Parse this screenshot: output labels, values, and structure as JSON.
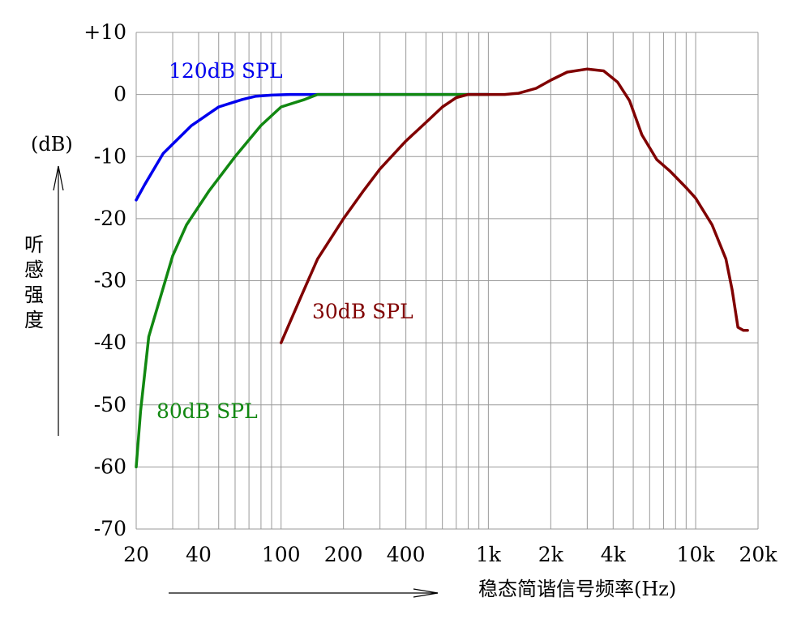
{
  "chart_data": {
    "type": "line",
    "title": "",
    "xlabel": "稳态简谐信号频率(Hz)",
    "ylabel": "听感强度",
    "yunit": "(dB)",
    "x_scale": "log",
    "xlim": [
      20,
      20000
    ],
    "ylim": [
      -70,
      10
    ],
    "grid": true,
    "x_grid_values": [
      20,
      30,
      40,
      50,
      60,
      70,
      80,
      90,
      100,
      200,
      300,
      400,
      500,
      600,
      700,
      800,
      900,
      1000,
      2000,
      3000,
      4000,
      5000,
      6000,
      7000,
      8000,
      9000,
      10000,
      20000
    ],
    "x_ticks": [
      {
        "value": 20,
        "label": "20"
      },
      {
        "value": 40,
        "label": "40"
      },
      {
        "value": 100,
        "label": "100"
      },
      {
        "value": 200,
        "label": "200"
      },
      {
        "value": 400,
        "label": "400"
      },
      {
        "value": 1000,
        "label": "1k"
      },
      {
        "value": 2000,
        "label": "2k"
      },
      {
        "value": 4000,
        "label": "4k"
      },
      {
        "value": 10000,
        "label": "10k"
      },
      {
        "value": 20000,
        "label": "20k"
      }
    ],
    "y_ticks": [
      {
        "value": 10,
        "label": "+10"
      },
      {
        "value": 0,
        "label": "0"
      },
      {
        "value": -10,
        "label": "-10"
      },
      {
        "value": -20,
        "label": "-20"
      },
      {
        "value": -30,
        "label": "-30"
      },
      {
        "value": -40,
        "label": "-40"
      },
      {
        "value": -50,
        "label": "-50"
      },
      {
        "value": -60,
        "label": "-60"
      },
      {
        "value": -70,
        "label": "-70"
      }
    ],
    "series": [
      {
        "name": "120dB SPL",
        "label": "120dB SPL",
        "color": "#0000ee",
        "x": [
          20,
          22,
          27,
          37,
          50,
          65,
          75,
          90,
          110,
          150,
          200,
          500,
          1000
        ],
        "y": [
          -17,
          -14.5,
          -9.5,
          -5,
          -2,
          -0.8,
          -0.3,
          -0.1,
          0,
          0,
          0,
          0,
          0
        ]
      },
      {
        "name": "80dB SPL",
        "label": "80dB SPL",
        "color": "#118811",
        "x": [
          20,
          21,
          23,
          26,
          30,
          35,
          45,
          60,
          80,
          100,
          130,
          150,
          200,
          400,
          800,
          1000
        ],
        "y": [
          -60,
          -51,
          -39,
          -33,
          -26,
          -21,
          -15.5,
          -10,
          -5,
          -2,
          -0.8,
          0,
          0,
          0,
          0,
          0
        ]
      },
      {
        "name": "30dB SPL",
        "label": "30dB SPL",
        "color": "#800000",
        "x": [
          100,
          125,
          150,
          200,
          250,
          300,
          400,
          500,
          600,
          700,
          800,
          1000,
          1200,
          1400,
          1700,
          2000,
          2400,
          3000,
          3600,
          4200,
          4800,
          5500,
          6500,
          7500,
          9000,
          10000,
          12000,
          14000,
          15000,
          16000,
          17000,
          17800
        ],
        "y": [
          -40,
          -32.5,
          -26.5,
          -20,
          -15.5,
          -12,
          -7.5,
          -4.5,
          -2,
          -0.5,
          0,
          0,
          0,
          0.2,
          1,
          2.3,
          3.6,
          4.1,
          3.8,
          2,
          -1,
          -6.5,
          -10.5,
          -12.3,
          -15,
          -16.7,
          -21,
          -26.5,
          -31.5,
          -37.5,
          -38,
          -38
        ],
        "y_note": ""
      }
    ]
  }
}
